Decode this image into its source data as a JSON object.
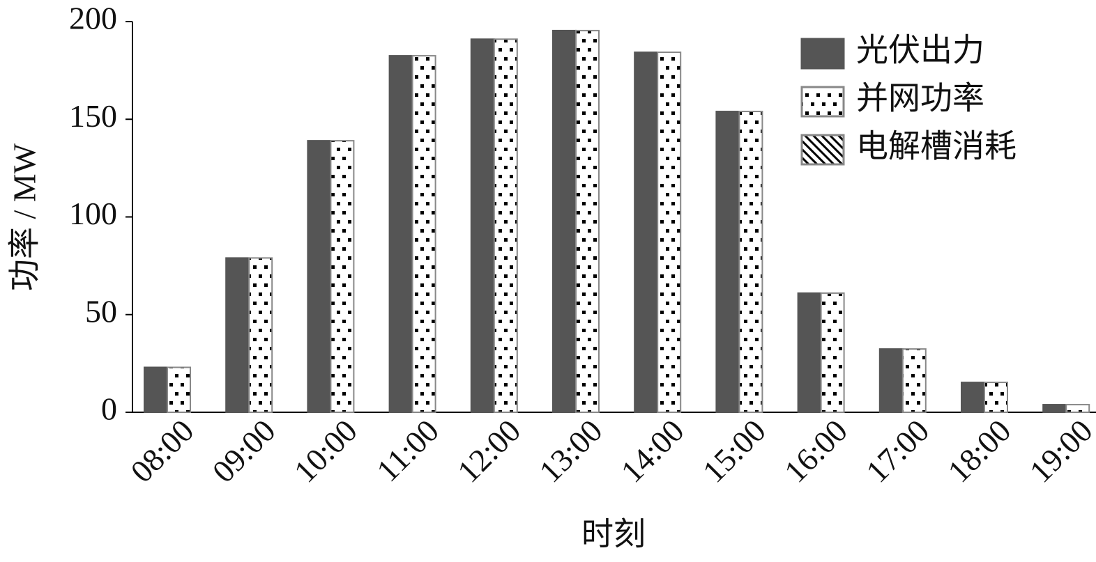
{
  "chart_data": {
    "type": "bar",
    "xlabel": "时刻",
    "ylabel": "功率 / MW",
    "categories": [
      "08:00",
      "09:00",
      "10:00",
      "11:00",
      "12:00",
      "13:00",
      "14:00",
      "15:00",
      "16:00",
      "17:00",
      "18:00",
      "19:00"
    ],
    "series": [
      {
        "name": "光伏出力",
        "color": "#555555",
        "pattern": "solid",
        "values": [
          23,
          79,
          139,
          182.5,
          191,
          195.4,
          184.3,
          154,
          61,
          32.4,
          15.3,
          3.9
        ]
      },
      {
        "name": "并网功率",
        "color": "#ffffff",
        "pattern": "dots",
        "values": [
          23,
          79,
          139,
          182.5,
          191,
          195.4,
          184.3,
          154,
          61,
          32.4,
          15.3,
          3.9
        ]
      },
      {
        "name": "电解槽消耗",
        "color": "#ffffff",
        "pattern": "diagonal",
        "values": [
          0,
          0,
          0,
          0,
          0,
          0,
          0,
          0,
          0,
          0,
          0,
          0
        ]
      }
    ],
    "ylim": [
      0,
      200
    ],
    "yticks": [
      0,
      50,
      100,
      150,
      200
    ],
    "grid": false,
    "legend": "upper right"
  }
}
